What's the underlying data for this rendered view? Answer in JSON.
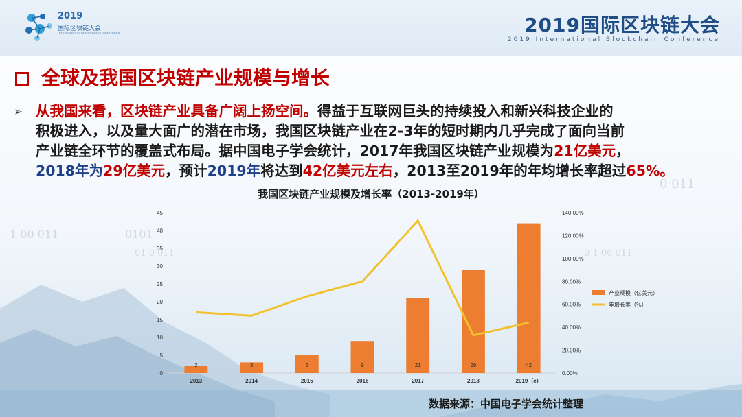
{
  "header": {
    "logo_year": "2019",
    "logo_cn": "国际区块链大会",
    "logo_en": "International Blockchain Conference",
    "conference_title": "2019国际区块链大会",
    "conference_subtitle": "2019 International Blockchain Conference"
  },
  "section": {
    "title": "全球及我国区块链产业规模与增长"
  },
  "paragraph": {
    "l1_red": "从我国来看，区块链产业具备广阔上扬空间。",
    "l1_rest": "得益于互联网巨头的持续投入和新兴科技企业的",
    "l2": "积极进入，以及量大面广的潜在市场，我国区块链产业在2-3年的短时期内几乎完成了面向当前",
    "l3_a": "产业链全环节的覆盖式布局。据中国电子学会统计，2017年我国区块链产业规模为",
    "l3_red": "21亿美元",
    "l3_b": "，",
    "l4_blue1": "2018年为",
    "l4_red1": "29亿美元",
    "l4_b": "，预计",
    "l4_blue2": "2019年",
    "l4_c": "将达到",
    "l4_red2": "42亿美元左右",
    "l4_d": "，2013至2019年的年均增长率超过",
    "l4_red3": "65%。"
  },
  "chart_data": {
    "type": "bar",
    "title": "我国区块链产业规模及增长率（2013-2019年）",
    "categories": [
      "2013",
      "2014",
      "2015",
      "2016",
      "2017",
      "2018",
      "2019（e）"
    ],
    "series": [
      {
        "name": "产业规模（亿美元）",
        "type": "bar",
        "axis": "left",
        "values": [
          2,
          3,
          5,
          9,
          21,
          29,
          42
        ],
        "color": "#ed7d31"
      },
      {
        "name": "年增长率（%）",
        "type": "line",
        "axis": "right",
        "values": [
          53,
          50,
          67,
          80,
          133,
          33,
          44
        ],
        "color": "#f2c12e"
      }
    ],
    "data_labels": [
      "2",
      "3",
      "5",
      "9",
      "21",
      "29",
      "42"
    ],
    "y_left": {
      "min": 0,
      "max": 45,
      "step": 5,
      "ticks": [
        "0",
        "5",
        "10",
        "15",
        "20",
        "25",
        "30",
        "35",
        "40",
        "45"
      ]
    },
    "y_right": {
      "min": 0,
      "max": 140,
      "step": 20,
      "ticks": [
        "0.00%",
        "20.00%",
        "40.00%",
        "60.00%",
        "80.00%",
        "100.00%",
        "120.00%",
        "140.00%"
      ]
    },
    "grid": false,
    "legend": "right"
  },
  "source": "数据来源：中国电子学会统计整理",
  "decor": {
    "d1": "0  011",
    "d2": "1  00  011",
    "d3": "0101",
    "d4": "01  0  011",
    "d5": "0  1  00  011"
  }
}
